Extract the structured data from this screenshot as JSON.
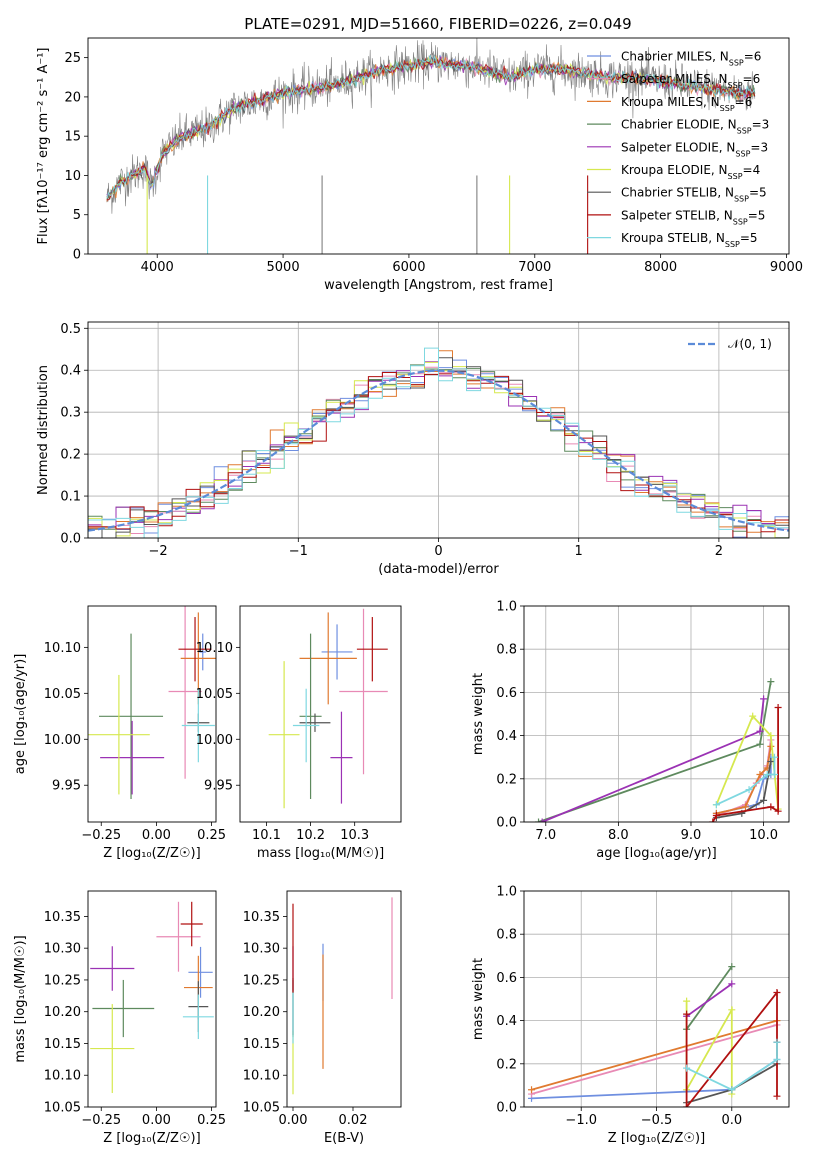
{
  "page_title": "PLATE=0291, MJD=51660, FIBERID=0226, z=0.049",
  "colors": {
    "Chabrier MILES": "#6f8fe0",
    "Salpeter MILES": "#e88ab5",
    "Kroupa MILES": "#e07a30",
    "Chabrier ELODIE": "#5e8a5e",
    "Salpeter ELODIE": "#9b32b4",
    "Kroupa ELODIE": "#d6e84f",
    "Chabrier STELIB": "#555555",
    "Salpeter STELIB": "#b01010",
    "Kroupa STELIB": "#7fd8e0"
  },
  "chart_data": [
    {
      "id": "spectrum",
      "type": "line",
      "title": "PLATE=0291, MJD=51660, FIBERID=0226, z=0.049",
      "xlabel": "wavelength [Angstrom, rest frame]",
      "ylabel": "Flux [fλ10⁻¹⁷ erg cm⁻² s⁻¹ A⁻¹]",
      "xlim": [
        3450,
        9020
      ],
      "ylim": [
        0,
        27.5
      ],
      "xticks": [
        4000,
        5000,
        6000,
        7000,
        8000,
        9000
      ],
      "yticks": [
        0,
        5,
        10,
        15,
        20,
        25
      ],
      "grid": false,
      "legend_position": "top-right",
      "legend": [
        {
          "label": "Chabrier MILES, N",
          "sub": "SSP",
          "suffix": "=6"
        },
        {
          "label": "Salpeter MILES, N",
          "sub": "SSP",
          "suffix": "=6"
        },
        {
          "label": "Kroupa MILES, N",
          "sub": "SSP",
          "suffix": "=6"
        },
        {
          "label": "Chabrier ELODIE, N",
          "sub": "SSP",
          "suffix": "=3"
        },
        {
          "label": "Salpeter ELODIE, N",
          "sub": "SSP",
          "suffix": "=3"
        },
        {
          "label": "Kroupa ELODIE, N",
          "sub": "SSP",
          "suffix": "=4"
        },
        {
          "label": "Chabrier STELIB, N",
          "sub": "SSP",
          "suffix": "=5"
        },
        {
          "label": "Salpeter STELIB, N",
          "sub": "SSP",
          "suffix": "=5"
        },
        {
          "label": "Kroupa STELIB, N",
          "sub": "SSP",
          "suffix": "=5"
        }
      ],
      "continuum": {
        "x": [
          3600,
          3700,
          3800,
          3900,
          3950,
          4050,
          4200,
          4400,
          4600,
          4800,
          5000,
          5200,
          5400,
          5600,
          5800,
          6000,
          6200,
          6400,
          6600,
          6800,
          7000,
          7200,
          7400,
          7600,
          7800,
          8000,
          8200,
          8400,
          8600,
          8750
        ],
        "y": [
          7,
          9,
          10,
          11,
          8.5,
          13,
          15,
          16,
          18.5,
          19.5,
          20.5,
          21,
          21.5,
          22.5,
          23.5,
          24,
          24.5,
          24,
          23.5,
          22.5,
          23.5,
          23.5,
          23,
          22.5,
          22.5,
          22,
          21.5,
          21,
          20.5,
          20.5
        ]
      }
    },
    {
      "id": "residuals",
      "type": "line",
      "xlabel": "(data-model)/error",
      "ylabel": "Normed distribution",
      "xlim": [
        -2.5,
        2.5
      ],
      "ylim": [
        0,
        0.515
      ],
      "xticks": [
        -2,
        -1,
        0,
        1,
        2
      ],
      "yticks": [
        0.0,
        0.1,
        0.2,
        0.3,
        0.4,
        0.5
      ],
      "grid": true,
      "legend_position": "top-right",
      "reference_curve": "𝒩(0, 1)",
      "bin_width": 0.1
    },
    {
      "id": "age-vs-Z",
      "type": "scatter",
      "xlabel": "Z [log₁₀(Z/Z☉)]",
      "ylabel": "age  [log₁₀(age/yr)]",
      "xlim": [
        -0.31,
        0.27
      ],
      "ylim": [
        9.91,
        10.145
      ],
      "xticks": [
        -0.25,
        0.0,
        0.25
      ],
      "yticks": [
        9.95,
        10.0,
        10.05,
        10.1
      ],
      "grid": false,
      "series": [
        {
          "name": "Chabrier MILES",
          "x": 0.21,
          "y": 10.095,
          "xerr": 0.015,
          "yerr": 0.02
        },
        {
          "name": "Salpeter MILES",
          "x": 0.13,
          "y": 10.052,
          "xerr": 0.075,
          "yerr": 0.095
        },
        {
          "name": "Kroupa MILES",
          "x": 0.19,
          "y": 10.088,
          "xerr": 0.08,
          "yerr": 0.05
        },
        {
          "name": "Chabrier ELODIE",
          "x": -0.115,
          "y": 10.025,
          "xerr": 0.145,
          "yerr": 0.09
        },
        {
          "name": "Salpeter ELODIE",
          "x": -0.11,
          "y": 9.98,
          "xerr": 0.145,
          "yerr": 0.04
        },
        {
          "name": "Kroupa ELODIE",
          "x": -0.17,
          "y": 10.005,
          "xerr": 0.14,
          "yerr": 0.065
        },
        {
          "name": "Chabrier STELIB",
          "x": 0.19,
          "y": 10.018,
          "xerr": 0.05,
          "yerr": 0.01
        },
        {
          "name": "Salpeter STELIB",
          "x": 0.175,
          "y": 10.098,
          "xerr": 0.075,
          "yerr": 0.035
        },
        {
          "name": "Kroupa STELIB",
          "x": 0.19,
          "y": 10.015,
          "xerr": 0.075,
          "yerr": 0.04
        }
      ]
    },
    {
      "id": "age-vs-mass",
      "type": "scatter",
      "xlabel": "mass [log₁₀(M/M☉)]",
      "ylabel": "",
      "xlim": [
        10.04,
        10.405
      ],
      "ylim": [
        9.91,
        10.145
      ],
      "xticks": [
        10.1,
        10.2,
        10.3
      ],
      "yticks": [
        9.95,
        10.0,
        10.05,
        10.1
      ],
      "grid": false,
      "series": [
        {
          "name": "Chabrier MILES",
          "x": 10.26,
          "y": 10.095,
          "xerr": 0.035,
          "yerr": 0.03
        },
        {
          "name": "Salpeter MILES",
          "x": 10.32,
          "y": 10.052,
          "xerr": 0.055,
          "yerr": 0.09
        },
        {
          "name": "Kroupa MILES",
          "x": 10.24,
          "y": 10.088,
          "xerr": 0.065,
          "yerr": 0.05
        },
        {
          "name": "Chabrier ELODIE",
          "x": 10.2,
          "y": 10.025,
          "xerr": 0.025,
          "yerr": 0.09
        },
        {
          "name": "Salpeter ELODIE",
          "x": 10.27,
          "y": 9.98,
          "xerr": 0.025,
          "yerr": 0.05
        },
        {
          "name": "Kroupa ELODIE",
          "x": 10.14,
          "y": 10.005,
          "xerr": 0.035,
          "yerr": 0.08
        },
        {
          "name": "Chabrier STELIB",
          "x": 10.21,
          "y": 10.018,
          "xerr": 0.035,
          "yerr": 0.01
        },
        {
          "name": "Salpeter STELIB",
          "x": 10.34,
          "y": 10.098,
          "xerr": 0.035,
          "yerr": 0.035
        },
        {
          "name": "Kroupa STELIB",
          "x": 10.19,
          "y": 10.015,
          "xerr": 0.03,
          "yerr": 0.04
        }
      ]
    },
    {
      "id": "weight-vs-age",
      "type": "line",
      "xlabel": "age  [log₁₀(age/yr)]",
      "ylabel": "mass weight",
      "xlim": [
        6.7,
        10.35
      ],
      "ylim": [
        0,
        1.0
      ],
      "xticks": [
        7,
        8,
        9,
        10
      ],
      "yticks": [
        0.0,
        0.2,
        0.4,
        0.6,
        0.8,
        1.0
      ],
      "grid": true,
      "series": [
        {
          "name": "Chabrier MILES",
          "x": [
            9.35,
            9.9,
            10.0,
            10.1,
            10.1
          ],
          "y": [
            0.04,
            0.08,
            0.2,
            0.22,
            0.3
          ]
        },
        {
          "name": "Salpeter MILES",
          "x": [
            9.35,
            9.75,
            9.9,
            10.05,
            10.1
          ],
          "y": [
            0.03,
            0.08,
            0.18,
            0.26,
            0.38
          ]
        },
        {
          "name": "Kroupa MILES",
          "x": [
            9.35,
            9.75,
            9.95,
            10.05,
            10.1
          ],
          "y": [
            0.04,
            0.07,
            0.22,
            0.25,
            0.35
          ]
        },
        {
          "name": "Chabrier ELODIE",
          "x": [
            6.9,
            9.95,
            10.1
          ],
          "y": [
            0.0,
            0.36,
            0.65
          ]
        },
        {
          "name": "Salpeter ELODIE",
          "x": [
            6.95,
            9.95,
            10.0
          ],
          "y": [
            0.0,
            0.42,
            0.57
          ]
        },
        {
          "name": "Kroupa ELODIE",
          "x": [
            9.35,
            9.85,
            10.1,
            10.2
          ],
          "y": [
            0.08,
            0.49,
            0.4,
            0.06
          ]
        },
        {
          "name": "Chabrier STELIB",
          "x": [
            9.35,
            9.7,
            10.0,
            10.1
          ],
          "y": [
            0.02,
            0.04,
            0.1,
            0.28
          ]
        },
        {
          "name": "Salpeter STELIB",
          "x": [
            9.3,
            9.35,
            10.1,
            10.2,
            10.2
          ],
          "y": [
            0.0,
            0.03,
            0.07,
            0.05,
            0.53
          ]
        },
        {
          "name": "Kroupa STELIB",
          "x": [
            9.35,
            9.8,
            10.05,
            10.15,
            10.15
          ],
          "y": [
            0.08,
            0.15,
            0.22,
            0.22,
            0.3
          ]
        }
      ]
    },
    {
      "id": "mass-vs-Z",
      "type": "scatter",
      "xlabel": "Z [log₁₀(Z/Z☉)]",
      "ylabel": "mass [log₁₀(M/M☉)]",
      "xlim": [
        -0.31,
        0.27
      ],
      "ylim": [
        10.05,
        10.39
      ],
      "xticks": [
        -0.25,
        0.0,
        0.25
      ],
      "yticks": [
        10.05,
        10.1,
        10.15,
        10.2,
        10.25,
        10.3,
        10.35
      ],
      "grid": false,
      "series": [
        {
          "name": "Chabrier MILES",
          "x": 0.2,
          "y": 10.262,
          "xerr": 0.055,
          "yerr": 0.04
        },
        {
          "name": "Salpeter MILES",
          "x": 0.1,
          "y": 10.318,
          "xerr": 0.1,
          "yerr": 0.055
        },
        {
          "name": "Kroupa MILES",
          "x": 0.19,
          "y": 10.238,
          "xerr": 0.065,
          "yerr": 0.05
        },
        {
          "name": "Chabrier ELODIE",
          "x": -0.15,
          "y": 10.205,
          "xerr": 0.14,
          "yerr": 0.045
        },
        {
          "name": "Salpeter ELODIE",
          "x": -0.2,
          "y": 10.268,
          "xerr": 0.1,
          "yerr": 0.035
        },
        {
          "name": "Kroupa ELODIE",
          "x": -0.2,
          "y": 10.142,
          "xerr": 0.1,
          "yerr": 0.07
        },
        {
          "name": "Chabrier STELIB",
          "x": 0.19,
          "y": 10.208,
          "xerr": 0.045,
          "yerr": 0.04
        },
        {
          "name": "Salpeter STELIB",
          "x": 0.16,
          "y": 10.338,
          "xerr": 0.05,
          "yerr": 0.035
        },
        {
          "name": "Kroupa STELIB",
          "x": 0.19,
          "y": 10.192,
          "xerr": 0.07,
          "yerr": 0.035
        }
      ]
    },
    {
      "id": "mass-vs-ebv",
      "type": "scatter",
      "xlabel": "E(B-V)",
      "ylabel": "",
      "xlim": [
        -0.002,
        0.036
      ],
      "ylim": [
        10.05,
        10.39
      ],
      "xticks": [
        0.0,
        0.02
      ],
      "yticks": [
        10.05,
        10.1,
        10.15,
        10.2,
        10.25,
        10.3,
        10.35
      ],
      "grid": false,
      "series": [
        {
          "name": "Chabrier MILES",
          "x": 0.01,
          "y": 10.262,
          "xerr": 0.0,
          "yerr": 0.045
        },
        {
          "name": "Salpeter MILES",
          "x": 0.033,
          "y": 10.3,
          "xerr": 0.0,
          "yerr": 0.08
        },
        {
          "name": "Kroupa MILES",
          "x": 0.01,
          "y": 10.2,
          "xerr": 0.0,
          "yerr": 0.09
        },
        {
          "name": "Chabrier ELODIE",
          "x": 0.0,
          "y": 10.205,
          "xerr": 0.0,
          "yerr": 0.045
        },
        {
          "name": "Salpeter ELODIE",
          "x": 0.0,
          "y": 10.268,
          "xerr": 0.0,
          "yerr": 0.035
        },
        {
          "name": "Kroupa ELODIE",
          "x": 0.0,
          "y": 10.12,
          "xerr": 0.0,
          "yerr": 0.05
        },
        {
          "name": "Chabrier STELIB",
          "x": 0.0,
          "y": 10.208,
          "xerr": 0.0,
          "yerr": 0.045
        },
        {
          "name": "Salpeter STELIB",
          "x": 0.0,
          "y": 10.3,
          "xerr": 0.0,
          "yerr": 0.07
        },
        {
          "name": "Kroupa STELIB",
          "x": 0.0,
          "y": 10.19,
          "xerr": 0.0,
          "yerr": 0.04
        }
      ]
    },
    {
      "id": "weight-vs-Z",
      "type": "line",
      "xlabel": "Z [log₁₀(Z/Z☉)]",
      "ylabel": "mass weight",
      "xlim": [
        -1.38,
        0.38
      ],
      "ylim": [
        0,
        1.0
      ],
      "xticks": [
        -1.0,
        -0.5,
        0.0
      ],
      "yticks": [
        0.0,
        0.2,
        0.4,
        0.6,
        0.8,
        1.0
      ],
      "grid": true,
      "series": [
        {
          "name": "Chabrier MILES",
          "x": [
            -1.33,
            0.0,
            0.3,
            0.3
          ],
          "y": [
            0.04,
            0.08,
            0.22,
            0.3
          ]
        },
        {
          "name": "Salpeter MILES",
          "x": [
            -1.33,
            0.3
          ],
          "y": [
            0.06,
            0.38
          ]
        },
        {
          "name": "Kroupa MILES",
          "x": [
            -1.33,
            0.3
          ],
          "y": [
            0.08,
            0.4
          ]
        },
        {
          "name": "Chabrier ELODIE",
          "x": [
            -0.3,
            0.0
          ],
          "y": [
            0.36,
            0.65
          ]
        },
        {
          "name": "Salpeter ELODIE",
          "x": [
            -0.3,
            0.0
          ],
          "y": [
            0.42,
            0.57
          ]
        },
        {
          "name": "Kroupa ELODIE",
          "x": [
            -0.3,
            -0.3,
            0.0,
            0.0
          ],
          "y": [
            0.49,
            0.08,
            0.45,
            0.06
          ]
        },
        {
          "name": "Chabrier STELIB",
          "x": [
            -0.3,
            0.0,
            0.3,
            0.3
          ],
          "y": [
            0.02,
            0.08,
            0.2,
            0.3
          ]
        },
        {
          "name": "Salpeter STELIB",
          "x": [
            -0.3,
            -0.3,
            0.3,
            0.3
          ],
          "y": [
            0.43,
            0.0,
            0.53,
            0.05
          ]
        },
        {
          "name": "Kroupa STELIB",
          "x": [
            -0.3,
            0.0,
            0.3,
            0.3
          ],
          "y": [
            0.18,
            0.08,
            0.22,
            0.3
          ]
        }
      ]
    }
  ]
}
